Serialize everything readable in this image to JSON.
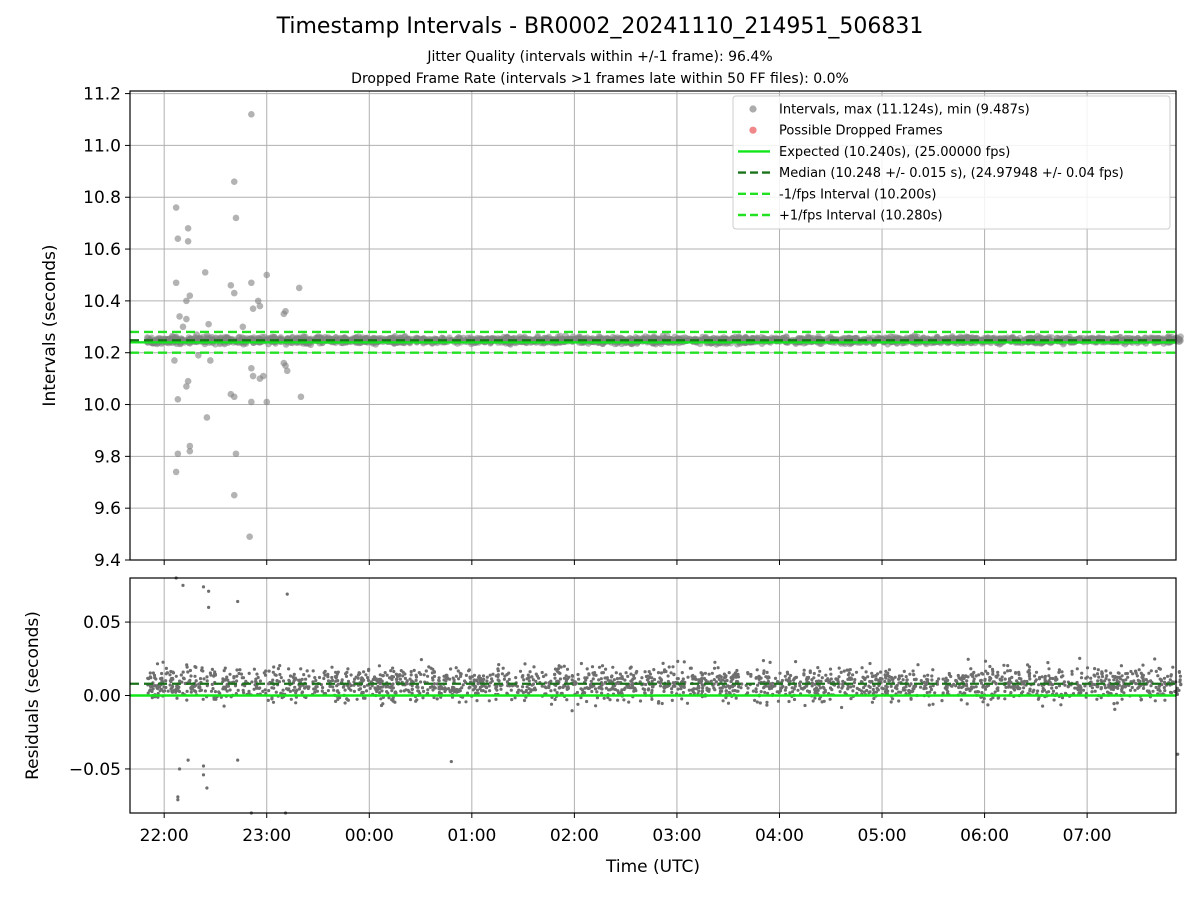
{
  "title": "Timestamp Intervals - BR0002_20241110_214951_506831",
  "subtitle1": "Jitter Quality (intervals within +/-1 frame): 96.4%",
  "subtitle2": "Dropped Frame Rate (intervals >1 frames late within 50 FF files): 0.0%",
  "colors": {
    "points": "#808080",
    "residual_points": "#6e6e6e",
    "dropped": "#e8474a",
    "expected": "#11e61a",
    "median": "#1a731a",
    "band": "#22e022",
    "grid": "#b0b0b0"
  },
  "chart_data": [
    {
      "type": "scatter",
      "panel": "intervals",
      "ylabel": "Intervals (seconds)",
      "xlabel": "",
      "ylim": [
        9.4,
        11.21
      ],
      "yticks": [
        "9.4",
        "9.6",
        "9.8",
        "10.0",
        "10.2",
        "10.4",
        "10.6",
        "10.8",
        "11.0",
        "11.2"
      ],
      "xlim": [
        "21:40",
        "07:52"
      ],
      "xtick_times": [
        "22:00",
        "23:00",
        "00:00",
        "01:00",
        "02:00",
        "03:00",
        "04:00",
        "05:00",
        "06:00",
        "07:00"
      ],
      "grid": true,
      "legend_position": "upper right",
      "legend": [
        "Intervals, max (11.124s), min (9.487s)",
        "Possible Dropped Frames",
        "Expected (10.240s), (25.00000 fps)",
        "Median (10.248 +/- 0.015 s), (24.97948 +/- 0.04 fps)",
        "-1/fps Interval (10.200s)",
        "+1/fps Interval (10.280s)"
      ],
      "series": [
        {
          "name": "Intervals, max (11.124s), min (9.487s)",
          "kind": "scatter",
          "note": "dense cloud 10.21–10.28 s from 21:50 to 07:52",
          "outliers": [
            [
              "22:07",
              10.76
            ],
            [
              "22:08",
              10.64
            ],
            [
              "22:14",
              10.68
            ],
            [
              "22:14",
              10.63
            ],
            [
              "22:07",
              10.47
            ],
            [
              "22:24",
              10.51
            ],
            [
              "22:15",
              10.42
            ],
            [
              "22:13",
              10.4
            ],
            [
              "22:09",
              10.34
            ],
            [
              "22:13",
              10.33
            ],
            [
              "22:11",
              10.3
            ],
            [
              "22:26",
              10.31
            ],
            [
              "22:19",
              10.27
            ],
            [
              "22:06",
              10.17
            ],
            [
              "22:20",
              10.19
            ],
            [
              "22:27",
              10.17
            ],
            [
              "22:14",
              10.09
            ],
            [
              "22:13",
              10.07
            ],
            [
              "22:08",
              10.02
            ],
            [
              "22:25",
              9.95
            ],
            [
              "22:15",
              9.84
            ],
            [
              "22:15",
              9.82
            ],
            [
              "22:08",
              9.81
            ],
            [
              "22:07",
              9.74
            ],
            [
              "22:41",
              10.86
            ],
            [
              "22:42",
              10.72
            ],
            [
              "22:39",
              10.46
            ],
            [
              "22:41",
              10.43
            ],
            [
              "22:46",
              10.3
            ],
            [
              "22:44",
              10.26
            ],
            [
              "22:39",
              10.04
            ],
            [
              "22:41",
              10.03
            ],
            [
              "22:42",
              9.81
            ],
            [
              "22:41",
              9.65
            ],
            [
              "22:51",
              11.12
            ],
            [
              "22:51",
              10.47
            ],
            [
              "22:55",
              10.4
            ],
            [
              "22:56",
              10.38
            ],
            [
              "23:00",
              10.5
            ],
            [
              "22:52",
              10.37
            ],
            [
              "22:51",
              10.14
            ],
            [
              "22:52",
              10.11
            ],
            [
              "22:56",
              10.1
            ],
            [
              "22:58",
              10.11
            ],
            [
              "22:51",
              10.01
            ],
            [
              "23:00",
              10.01
            ],
            [
              "23:10",
              10.35
            ],
            [
              "23:11",
              10.36
            ],
            [
              "23:19",
              10.45
            ],
            [
              "23:10",
              10.16
            ],
            [
              "23:11",
              10.15
            ],
            [
              "23:12",
              10.13
            ],
            [
              "23:20",
              10.03
            ],
            [
              "22:50",
              9.49
            ]
          ]
        },
        {
          "name": "Possible Dropped Frames",
          "kind": "scatter",
          "values": []
        },
        {
          "name": "Expected (10.240s), (25.00000 fps)",
          "kind": "hline",
          "y": 10.24
        },
        {
          "name": "Median (10.248 +/- 0.015 s), (24.97948 +/- 0.04 fps)",
          "kind": "hline",
          "y": 10.248
        },
        {
          "name": "-1/fps Interval (10.200s)",
          "kind": "hline",
          "y": 10.2
        },
        {
          "name": "+1/fps Interval (10.280s)",
          "kind": "hline",
          "y": 10.28
        }
      ]
    },
    {
      "type": "scatter",
      "panel": "residuals",
      "ylabel": "Residuals (seconds)",
      "xlabel": "Time (UTC)",
      "ylim": [
        -0.08,
        0.08
      ],
      "yticks": [
        "−0.05",
        "0.00",
        "0.05"
      ],
      "ytick_values": [
        -0.05,
        0.0,
        0.05
      ],
      "xlim": [
        "21:40",
        "07:52"
      ],
      "xticks": [
        "22:00",
        "23:00",
        "00:00",
        "01:00",
        "02:00",
        "03:00",
        "04:00",
        "05:00",
        "06:00",
        "07:00"
      ],
      "grid": true,
      "series": [
        {
          "name": "residuals",
          "kind": "scatter",
          "note": "dense cloud about -0.03 to 0.045 s",
          "outliers": [
            [
              "22:07",
              0.08
            ],
            [
              "22:23",
              0.074
            ],
            [
              "22:26",
              0.071
            ],
            [
              "22:43",
              0.064
            ],
            [
              "23:12",
              0.069
            ],
            [
              "22:26",
              0.06
            ],
            [
              "22:11",
              0.075
            ],
            [
              "22:08",
              -0.069
            ],
            [
              "22:08",
              -0.071
            ],
            [
              "22:09",
              -0.05
            ],
            [
              "22:23",
              -0.048
            ],
            [
              "22:25",
              -0.063
            ],
            [
              "22:14",
              -0.044
            ],
            [
              "22:43",
              -0.044
            ],
            [
              "22:51",
              -0.08
            ],
            [
              "23:11",
              -0.08
            ],
            [
              "22:23",
              -0.054
            ],
            [
              "00:48",
              -0.045
            ],
            [
              "07:53",
              -0.04
            ]
          ]
        },
        {
          "name": "Expected",
          "kind": "hline",
          "y": 0.0
        },
        {
          "name": "Median",
          "kind": "hline",
          "y": 0.008
        }
      ]
    }
  ]
}
